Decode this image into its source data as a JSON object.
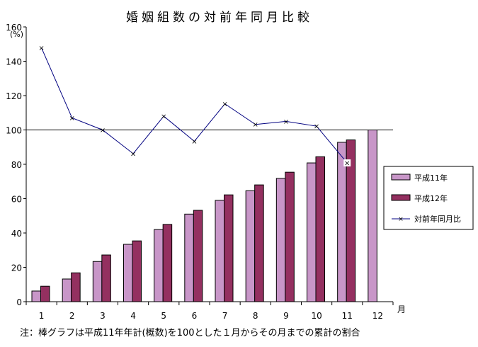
{
  "chart_data": {
    "type": "bar",
    "title": "婚姻組数の対前年同月比較",
    "ylabel": "(%)",
    "xlabel": "月",
    "ylim": [
      0,
      160
    ],
    "yticks": [
      0,
      20,
      40,
      60,
      80,
      100,
      120,
      140,
      160
    ],
    "reference_line": 100,
    "categories": [
      "1",
      "2",
      "3",
      "4",
      "5",
      "6",
      "7",
      "8",
      "9",
      "10",
      "11",
      "12"
    ],
    "series": [
      {
        "name": "平成11年",
        "type": "bar",
        "color": "#c896c8",
        "values": [
          6.2,
          13.2,
          23.4,
          33.4,
          42.0,
          51.0,
          59.0,
          64.6,
          71.8,
          80.8,
          92.8,
          100.0
        ]
      },
      {
        "name": "平成12年",
        "type": "bar",
        "color": "#943060",
        "values": [
          9.0,
          16.8,
          27.2,
          35.4,
          45.0,
          53.2,
          62.2,
          68.0,
          75.4,
          84.4,
          94.2,
          null
        ]
      },
      {
        "name": "対前年同月比",
        "type": "line",
        "color": "#000080",
        "values": [
          147.8,
          107.0,
          100.0,
          86.2,
          108.0,
          93.4,
          115.2,
          103.2,
          105.0,
          102.2,
          80.8,
          null
        ]
      }
    ],
    "legend_position": "right",
    "note": "注：棒グラフは平成11年年計(概数)を100とした１月からその月までの累計の割合"
  }
}
